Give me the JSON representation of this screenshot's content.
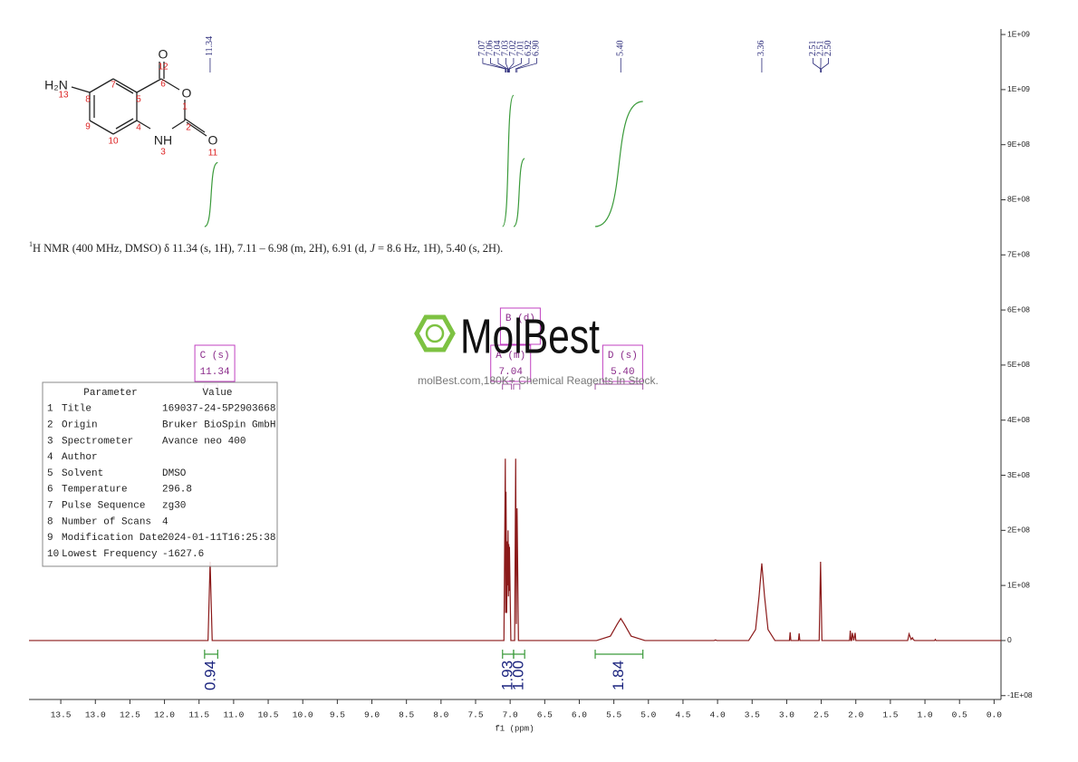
{
  "chart_data": {
    "type": "line",
    "xlabel": "f1 (ppm)",
    "color": "#8b1a1a",
    "xlim": [
      13.96,
      -0.1
    ],
    "xticks": [
      13.5,
      {
        "value": 13,
        "label": "13.0"
      },
      12.5,
      {
        "value": 12,
        "label": "12.0"
      },
      11.5,
      {
        "value": 11,
        "label": "11.0"
      },
      10.5,
      {
        "value": 10,
        "label": "10.0"
      },
      9.5,
      {
        "value": 9,
        "label": "9.0"
      },
      8.5,
      {
        "value": 8,
        "label": "8.0"
      },
      7.5,
      {
        "value": 7,
        "label": "7.0"
      },
      6.5,
      {
        "value": 6,
        "label": "6.0"
      },
      5.5,
      {
        "value": 5,
        "label": "5.0"
      },
      4.5,
      {
        "value": 4,
        "label": "4.0"
      },
      3.5,
      {
        "value": 3,
        "label": "3.0"
      },
      2.5,
      {
        "value": 2,
        "label": "2.0"
      },
      1.5,
      {
        "value": 1,
        "label": "1.0"
      },
      0.5,
      {
        "value": 0,
        "label": "0.0"
      }
    ],
    "ylim": [
      -107000000,
      1110000000
    ],
    "yticks": [
      {
        "value": -100000000,
        "label": "-1E+08"
      },
      0,
      {
        "value": 100000000,
        "label": "1E+08"
      },
      {
        "value": 200000000,
        "label": "2E+08"
      },
      {
        "value": 300000000,
        "label": "3E+08"
      },
      {
        "value": 400000000,
        "label": "4E+08"
      },
      {
        "value": 500000000,
        "label": "5E+08"
      },
      {
        "value": 600000000,
        "label": "6E+08"
      },
      {
        "value": 700000000,
        "label": "7E+08"
      },
      {
        "value": 800000000,
        "label": "8E+08"
      },
      {
        "value": 900000000,
        "label": "9E+08"
      },
      {
        "value": 1000000000,
        "label": "1E+09"
      },
      {
        "value": 1100000000,
        "label": "1E+09"
      }
    ],
    "x": [
      13.96,
      11.37,
      11.34,
      11.31,
      7.09,
      7.07,
      7.065,
      7.06,
      7.05,
      7.04,
      7.035,
      7.03,
      7.025,
      7.02,
      7.015,
      7.01,
      6.99,
      6.935,
      6.92,
      6.91,
      6.9,
      6.88,
      5.75,
      5.55,
      5.45,
      5.4,
      5.35,
      5.25,
      5.05,
      4.05,
      4.03,
      4.01,
      3.55,
      3.45,
      3.4,
      3.36,
      3.32,
      3.27,
      3.17,
      2.96,
      2.95,
      2.94,
      2.83,
      2.82,
      2.81,
      2.53,
      2.51,
      2.49,
      2.09,
      2.08,
      2.07,
      2.06,
      2.05,
      2.03,
      2.01,
      2.0,
      1.25,
      1.23,
      1.2,
      1.18,
      1.17,
      1.15,
      0.86,
      0.85,
      0.84,
      -0.1
    ],
    "values": [
      0,
      0,
      143000000,
      0,
      0,
      330000000,
      50000000,
      270000000,
      50000000,
      180000000,
      100000000,
      200000000,
      80000000,
      175000000,
      90000000,
      170000000,
      0,
      0,
      330000000,
      30000000,
      240000000,
      0,
      0,
      8000000,
      30000000,
      40000000,
      30000000,
      8000000,
      0,
      0,
      1000000,
      0,
      0,
      20000000,
      80000000,
      140000000,
      80000000,
      20000000,
      0,
      0,
      15000000,
      0,
      0,
      13000000,
      0,
      0,
      143000000,
      0,
      0,
      18000000,
      0,
      0,
      14000000,
      0,
      14000000,
      0,
      0,
      12000000,
      2000000,
      5000000,
      2000000,
      0,
      0,
      2000000,
      0,
      0
    ],
    "peak_labels": [
      {
        "value": 11.34,
        "label": "11.34"
      },
      {
        "value": 7.07,
        "label": "7.07"
      },
      {
        "value": 7.06,
        "label": "7.06"
      },
      {
        "value": 7.04,
        "label": "7.04"
      },
      {
        "value": 7.03,
        "label": "7.03"
      },
      {
        "value": 7.02,
        "label": "7.02"
      },
      {
        "value": 7.01,
        "label": "7.01"
      },
      {
        "value": 6.92,
        "label": "6.92"
      },
      {
        "value": 6.9,
        "label": "6.90"
      },
      {
        "value": 5.4,
        "label": "5.40"
      },
      {
        "value": 3.36,
        "label": "3.36"
      },
      {
        "value": 2.51,
        "label": "2.51"
      },
      {
        "value": 2.51,
        "label": "2.51"
      },
      {
        "value": 2.5,
        "label": "2.50"
      }
    ],
    "integrals": [
      {
        "from": 11.42,
        "to": 11.23,
        "value": 0.94
      },
      {
        "from": 7.11,
        "to": 6.95,
        "value": 1.93
      },
      {
        "from": 6.95,
        "to": 6.79,
        "value": {
          "value": 1,
          "label": "1.00"
        }
      },
      {
        "from": 5.77,
        "to": 5.08,
        "value": 1.84
      }
    ],
    "multiplets": [
      {
        "name": "C (s)",
        "shift": 11.34,
        "from": 11.42,
        "to": 11.23
      },
      {
        "name": "A (m)",
        "shift": 7.04,
        "from": 7.11,
        "to": 6.98
      },
      {
        "name": "B (d)",
        "from": 6.95,
        "to": 6.86
      },
      {
        "name": "D (s)",
        "shift": {
          "value": 5.4,
          "label": "5.40"
        },
        "from": 5.77,
        "to": 5.08
      }
    ],
    "annotation": {
      "superscript": "1",
      "text1": "H NMR (400 MHz, DMSO) δ 11.34 (s, 1H), 7.11 – 6.98 (m, 2H), 6.91 (d, ",
      "italic": "J",
      "text2": " = 8.6 Hz, 1H), 5.40 (s, 2H)."
    }
  },
  "parameters": {
    "header": [
      "Parameter",
      "Value"
    ],
    "rows": [
      [
        1,
        "Title",
        "169037-24-5P2903668"
      ],
      [
        2,
        "Origin",
        "Bruker BioSpin GmbH"
      ],
      [
        3,
        "Spectrometer",
        "Avance neo 400"
      ],
      [
        4,
        "Author"
      ],
      [
        5,
        "Solvent",
        "DMSO"
      ],
      [
        6,
        "Temperature",
        "296.8"
      ],
      [
        7,
        "Pulse Sequence",
        "zg30"
      ],
      [
        8,
        "Number of Scans",
        "4"
      ],
      [
        9,
        "Modification Date",
        "2024-01-11T16:25:38"
      ],
      [
        10,
        "Lowest Frequency",
        "-1627.6"
      ]
    ]
  },
  "watermark": {
    "logo": "MolBest",
    "text": "molBest.com,180K+ Chemical Reagents In Stock."
  },
  "structure": {
    "atoms": [
      "H₂N",
      "O",
      "O",
      "NH",
      "O"
    ],
    "locants": [
      13,
      8,
      7,
      5,
      6,
      12,
      1,
      2,
      3,
      4,
      10,
      9,
      11
    ]
  }
}
